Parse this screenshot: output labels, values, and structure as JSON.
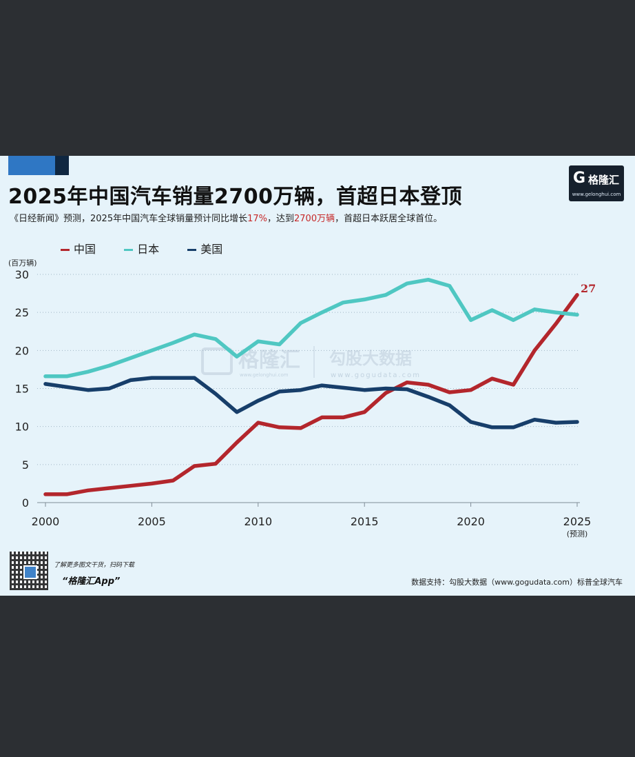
{
  "header": {
    "title": "2025年中国汽车销量2700万辆，首超日本登顶",
    "subtitle_parts": [
      "《日经新闻》预测，2025年中国汽车全球销量预计同比增长",
      "17%",
      "，达到",
      "2700万辆",
      "，首超日本跃居全球首位。"
    ]
  },
  "logo": {
    "mark": "G",
    "text": "格隆汇",
    "url": "www.gelonghui.com"
  },
  "watermarks": {
    "left": "格隆汇",
    "left_url": "www.gelonghui.com",
    "right": "勾股大数据",
    "right_url": "www.gogudata.com"
  },
  "footer": {
    "note": "了解更多图文干货，扫码下载",
    "app": "“格隆汇App”",
    "source": "数据支持：勾股大数据（www.gogudata.com）标普全球汽车"
  },
  "bottom_caption": "",
  "colors": {
    "china": "#b3262c",
    "japan": "#4fc7c2",
    "usa": "#173e6a",
    "background": "#e6f3fa"
  },
  "chart_data": {
    "type": "line",
    "ylabel": "(百万辆)",
    "ylim": [
      0,
      30
    ],
    "yticks": [
      "0",
      "5",
      "10",
      "15",
      "20",
      "25",
      "30"
    ],
    "xlim": [
      2000,
      2025
    ],
    "xticks": [
      "2000",
      "2005",
      "2010",
      "2015",
      "2020",
      "2025"
    ],
    "x_note": "(预测)",
    "x": [
      2000,
      2001,
      2002,
      2003,
      2004,
      2005,
      2006,
      2007,
      2008,
      2009,
      2010,
      2011,
      2012,
      2013,
      2014,
      2015,
      2016,
      2017,
      2018,
      2019,
      2020,
      2021,
      2022,
      2023,
      2024,
      2025
    ],
    "series": [
      {
        "name": "中国",
        "color": "#b3262c",
        "values": [
          1.1,
          1.1,
          1.6,
          1.9,
          2.2,
          2.5,
          2.9,
          4.8,
          5.1,
          7.9,
          10.5,
          9.9,
          9.8,
          11.2,
          11.2,
          11.9,
          14.4,
          15.8,
          15.5,
          14.5,
          14.8,
          16.3,
          15.5,
          20.0,
          23.5,
          27.3
        ]
      },
      {
        "name": "日本",
        "color": "#4fc7c2",
        "values": [
          16.6,
          16.6,
          17.2,
          18.0,
          19.0,
          20.0,
          21.0,
          22.1,
          21.5,
          19.2,
          21.2,
          20.8,
          23.6,
          25.0,
          26.3,
          26.7,
          27.3,
          28.8,
          29.3,
          28.5,
          24.0,
          25.3,
          24.0,
          25.4,
          25.0,
          24.7
        ]
      },
      {
        "name": "美国",
        "color": "#173e6a",
        "values": [
          15.6,
          15.2,
          14.8,
          15.0,
          16.1,
          16.4,
          16.4,
          16.4,
          14.3,
          11.9,
          13.4,
          14.6,
          14.8,
          15.4,
          15.1,
          14.8,
          15.0,
          14.9,
          13.9,
          12.8,
          10.6,
          9.9,
          9.9,
          10.9,
          10.5,
          10.6
        ]
      }
    ],
    "annotations": [
      {
        "series": "中国",
        "x": 2025,
        "label": "27"
      }
    ],
    "grid": true,
    "legend": "top-left"
  }
}
